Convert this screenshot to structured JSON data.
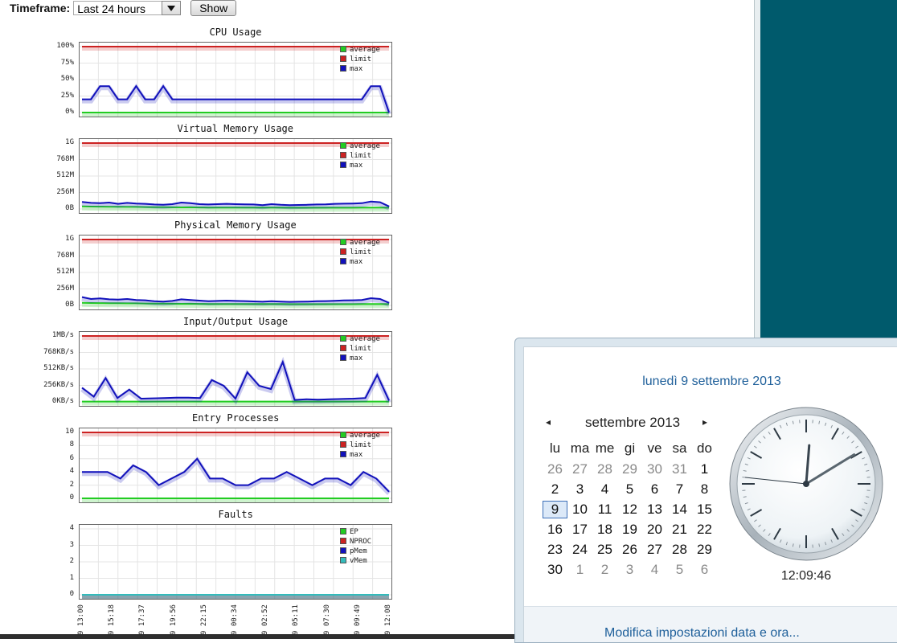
{
  "toolbar": {
    "timeframe_label": "Timeframe:",
    "timeframe_value": "Last 24 hours",
    "show_label": "Show"
  },
  "colors": {
    "average": "#22cc22",
    "limit": "#cc2222",
    "max": "#1111bb",
    "vmem": "#33bbbb",
    "panel_teal": "#005a6c",
    "link_blue": "#1e5f9a"
  },
  "legend_main": [
    "average",
    "limit",
    "max"
  ],
  "legend_faults": [
    "EP",
    "NPROC",
    "pMem",
    "vMem"
  ],
  "chart_data": [
    {
      "type": "line",
      "title": "CPU Usage",
      "yticks": [
        "100%",
        "75%",
        "50%",
        "25%",
        "0%"
      ],
      "ylim": [
        0,
        100
      ],
      "series": [
        {
          "name": "average",
          "values": [
            0,
            0,
            0,
            0,
            0,
            0,
            0,
            0,
            0,
            0,
            0,
            0,
            0,
            0,
            0,
            0,
            0,
            0,
            0,
            0,
            0,
            0,
            0,
            0,
            0,
            0,
            0,
            0,
            0,
            0,
            0,
            0,
            0,
            0,
            0
          ]
        },
        {
          "name": "limit",
          "values": [
            100,
            100,
            100,
            100,
            100,
            100,
            100,
            100,
            100,
            100,
            100,
            100,
            100,
            100,
            100,
            100,
            100,
            100,
            100,
            100,
            100,
            100,
            100,
            100,
            100,
            100,
            100,
            100,
            100,
            100,
            100,
            100,
            100,
            100,
            100
          ]
        },
        {
          "name": "max",
          "values": [
            20,
            20,
            40,
            40,
            20,
            20,
            40,
            20,
            20,
            40,
            20,
            20,
            20,
            20,
            20,
            20,
            20,
            20,
            20,
            20,
            20,
            20,
            20,
            20,
            20,
            20,
            20,
            20,
            20,
            20,
            20,
            20,
            40,
            40,
            0
          ]
        }
      ]
    },
    {
      "type": "line",
      "title": "Virtual Memory Usage",
      "yticks": [
        "1G",
        "768M",
        "512M",
        "256M",
        "0B"
      ],
      "ylim": [
        0,
        1024
      ],
      "series": [
        {
          "name": "average",
          "values": [
            40,
            38,
            36,
            35,
            34,
            33,
            32,
            30,
            28,
            27,
            26,
            25,
            26,
            24,
            23,
            22,
            22,
            22,
            22,
            21,
            21,
            21,
            21,
            20,
            20,
            20,
            20,
            20,
            20,
            20,
            20,
            21,
            22,
            22,
            20
          ]
        },
        {
          "name": "limit",
          "values": [
            1024,
            1024,
            1024,
            1024,
            1024,
            1024,
            1024,
            1024,
            1024,
            1024,
            1024,
            1024,
            1024,
            1024,
            1024,
            1024,
            1024,
            1024,
            1024,
            1024,
            1024,
            1024,
            1024,
            1024,
            1024,
            1024,
            1024,
            1024,
            1024,
            1024,
            1024,
            1024,
            1024,
            1024,
            1024
          ]
        },
        {
          "name": "max",
          "values": [
            110,
            95,
            90,
            100,
            80,
            95,
            85,
            80,
            70,
            65,
            75,
            100,
            90,
            75,
            70,
            75,
            80,
            75,
            72,
            70,
            60,
            75,
            65,
            60,
            62,
            65,
            70,
            72,
            80,
            82,
            85,
            90,
            115,
            105,
            40
          ]
        }
      ]
    },
    {
      "type": "line",
      "title": "Physical Memory Usage",
      "yticks": [
        "1G",
        "768M",
        "512M",
        "256M",
        "0B"
      ],
      "ylim": [
        0,
        1024
      ],
      "series": [
        {
          "name": "average",
          "values": [
            40,
            38,
            36,
            35,
            34,
            33,
            32,
            30,
            28,
            27,
            26,
            25,
            26,
            24,
            23,
            22,
            22,
            22,
            22,
            21,
            21,
            21,
            21,
            20,
            20,
            20,
            20,
            20,
            20,
            20,
            20,
            21,
            22,
            22,
            20
          ]
        },
        {
          "name": "limit",
          "values": [
            1024,
            1024,
            1024,
            1024,
            1024,
            1024,
            1024,
            1024,
            1024,
            1024,
            1024,
            1024,
            1024,
            1024,
            1024,
            1024,
            1024,
            1024,
            1024,
            1024,
            1024,
            1024,
            1024,
            1024,
            1024,
            1024,
            1024,
            1024,
            1024,
            1024,
            1024,
            1024,
            1024,
            1024,
            1024
          ]
        },
        {
          "name": "max",
          "values": [
            130,
            100,
            110,
            95,
            90,
            100,
            85,
            80,
            65,
            60,
            70,
            95,
            85,
            75,
            65,
            70,
            75,
            70,
            68,
            62,
            58,
            66,
            60,
            55,
            58,
            60,
            65,
            68,
            72,
            78,
            80,
            85,
            112,
            100,
            40
          ]
        }
      ]
    },
    {
      "type": "line",
      "title": "Input/Output Usage",
      "yticks": [
        "1MB/s",
        "768KB/s",
        "512KB/s",
        "256KB/s",
        "0KB/s"
      ],
      "ylim": [
        0,
        1024
      ],
      "series": [
        {
          "name": "average",
          "values": [
            5,
            5,
            5,
            5,
            5,
            5,
            5,
            5,
            5,
            5,
            5,
            5,
            5,
            5,
            5,
            5,
            5,
            5,
            5,
            5,
            5,
            5,
            5,
            5,
            5,
            5,
            5,
            5,
            5,
            5,
            5,
            5,
            5,
            5,
            5
          ]
        },
        {
          "name": "limit",
          "values": [
            1024,
            1024,
            1024,
            1024,
            1024,
            1024,
            1024,
            1024,
            1024,
            1024,
            1024,
            1024,
            1024,
            1024,
            1024,
            1024,
            1024,
            1024,
            1024,
            1024,
            1024,
            1024,
            1024,
            1024,
            1024,
            1024,
            1024,
            1024,
            1024,
            1024,
            1024,
            1024,
            1024,
            1024,
            1024
          ]
        },
        {
          "name": "max",
          "values": [
            220,
            80,
            370,
            60,
            190,
            50,
            55,
            60,
            65,
            65,
            60,
            340,
            250,
            50,
            460,
            250,
            200,
            620,
            30,
            40,
            35,
            40,
            45,
            50,
            60,
            420,
            20
          ]
        }
      ]
    },
    {
      "type": "line",
      "title": "Entry Processes",
      "yticks": [
        "10",
        "8",
        "6",
        "4",
        "2",
        "0"
      ],
      "ylim": [
        0,
        10
      ],
      "series": [
        {
          "name": "average",
          "values": [
            0,
            0,
            0,
            0,
            0,
            0,
            0,
            0,
            0,
            0,
            0,
            0,
            0,
            0,
            0,
            0,
            0,
            0,
            0,
            0,
            0,
            0,
            0,
            0,
            0,
            0,
            0,
            0,
            0,
            0,
            0,
            0,
            0,
            0,
            0
          ]
        },
        {
          "name": "limit",
          "values": [
            10,
            10,
            10,
            10,
            10,
            10,
            10,
            10,
            10,
            10,
            10,
            10,
            10,
            10,
            10,
            10,
            10,
            10,
            10,
            10,
            10,
            10,
            10,
            10,
            10,
            10,
            10,
            10,
            10,
            10,
            10,
            10,
            10,
            10,
            10
          ]
        },
        {
          "name": "max",
          "values": [
            4,
            4,
            4,
            3,
            5,
            4,
            2,
            3,
            4,
            6,
            3,
            3,
            2,
            2,
            3,
            3,
            4,
            3,
            2,
            3,
            3,
            2,
            4,
            3,
            1
          ]
        }
      ]
    },
    {
      "type": "line",
      "title": "Faults",
      "yticks": [
        "4",
        "3",
        "2",
        "1",
        "0"
      ],
      "ylim": [
        0,
        4
      ],
      "x": [
        "9 13:00",
        "9 15:18",
        "9 17:37",
        "9 19:56",
        "9 22:15",
        "9 00:34",
        "9 02:52",
        "9 05:11",
        "9 07:30",
        "9 09:49",
        "9 12:08"
      ],
      "series": [
        {
          "name": "EP",
          "values": [
            0,
            0,
            0,
            0,
            0,
            0,
            0,
            0,
            0,
            0,
            0
          ]
        },
        {
          "name": "NPROC",
          "values": [
            0,
            0,
            0,
            0,
            0,
            0,
            0,
            0,
            0,
            0,
            0
          ]
        },
        {
          "name": "pMem",
          "values": [
            0,
            0,
            0,
            0,
            0,
            0,
            0,
            0,
            0,
            0,
            0
          ]
        },
        {
          "name": "vMem",
          "values": [
            0,
            0,
            0,
            0,
            0,
            0,
            0,
            0,
            0,
            0,
            0
          ]
        }
      ]
    }
  ],
  "calendar": {
    "full_date": "lunedì 9 settembre 2013",
    "month_label": "settembre 2013",
    "prev_glyph": "◂",
    "next_glyph": "▸",
    "weekdays": [
      "lu",
      "ma",
      "me",
      "gi",
      "ve",
      "sa",
      "do"
    ],
    "weeks": [
      [
        "26",
        "27",
        "28",
        "29",
        "30",
        "31",
        "1"
      ],
      [
        "2",
        "3",
        "4",
        "5",
        "6",
        "7",
        "8"
      ],
      [
        "9",
        "10",
        "11",
        "12",
        "13",
        "14",
        "15"
      ],
      [
        "16",
        "17",
        "18",
        "19",
        "20",
        "21",
        "22"
      ],
      [
        "23",
        "24",
        "25",
        "26",
        "27",
        "28",
        "29"
      ],
      [
        "30",
        "1",
        "2",
        "3",
        "4",
        "5",
        "6"
      ]
    ],
    "time": "12:09:46",
    "clock": {
      "hours": 12,
      "minutes": 9,
      "seconds": 46
    },
    "settings_link": "Modifica impostazioni data e ora..."
  }
}
